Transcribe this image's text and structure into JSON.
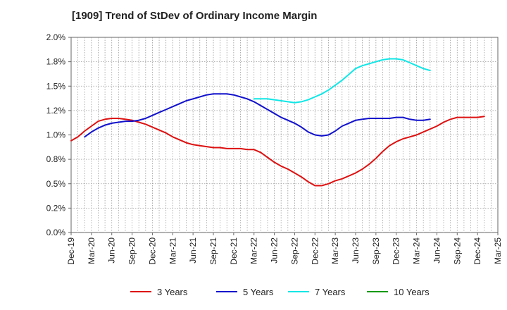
{
  "chart_data": {
    "type": "line",
    "title": "[1909]  Trend of StDev of Ordinary Income Margin",
    "xlabel": "",
    "ylabel": "",
    "ylim": [
      0,
      2.0
    ],
    "y_ticks": [
      0,
      0.25,
      0.5,
      0.75,
      1.0,
      1.25,
      1.5,
      1.75,
      2.0
    ],
    "y_tick_labels": [
      "0.0%",
      "0.2%",
      "0.5%",
      "0.8%",
      "1.0%",
      "1.2%",
      "1.5%",
      "1.8%",
      "2.0%"
    ],
    "x_tick_labels": [
      "Dec-19",
      "Mar-20",
      "Jun-20",
      "Sep-20",
      "Dec-20",
      "Mar-21",
      "Jun-21",
      "Sep-21",
      "Dec-21",
      "Mar-22",
      "Jun-22",
      "Sep-22",
      "Dec-22",
      "Mar-23",
      "Jun-23",
      "Sep-23",
      "Dec-23",
      "Mar-24",
      "Jun-24",
      "Sep-24",
      "Dec-24",
      "Mar-25"
    ],
    "grid": true,
    "legend_position": "bottom",
    "series": [
      {
        "name": "3 Years",
        "color": "#dd1111",
        "x_start": 0,
        "values": [
          0.94,
          0.98,
          1.04,
          1.09,
          1.14,
          1.16,
          1.17,
          1.17,
          1.16,
          1.15,
          1.13,
          1.11,
          1.08,
          1.05,
          1.02,
          0.98,
          0.95,
          0.92,
          0.9,
          0.89,
          0.88,
          0.87,
          0.87,
          0.86,
          0.86,
          0.86,
          0.85,
          0.85,
          0.82,
          0.77,
          0.72,
          0.68,
          0.65,
          0.61,
          0.57,
          0.52,
          0.48,
          0.48,
          0.5,
          0.53,
          0.55,
          0.58,
          0.61,
          0.65,
          0.7,
          0.76,
          0.83,
          0.89,
          0.93,
          0.96,
          0.98,
          1.0,
          1.03,
          1.06,
          1.09,
          1.13,
          1.16,
          1.18,
          1.18,
          1.18,
          1.18,
          1.19
        ]
      },
      {
        "name": "5 Years",
        "color": "#1111cc",
        "x_start": 2,
        "values": [
          0.98,
          1.03,
          1.07,
          1.1,
          1.12,
          1.13,
          1.14,
          1.14,
          1.15,
          1.17,
          1.2,
          1.23,
          1.26,
          1.29,
          1.32,
          1.35,
          1.37,
          1.39,
          1.41,
          1.42,
          1.42,
          1.42,
          1.41,
          1.39,
          1.37,
          1.34,
          1.3,
          1.26,
          1.22,
          1.18,
          1.15,
          1.12,
          1.08,
          1.03,
          1.0,
          0.99,
          1.0,
          1.04,
          1.09,
          1.12,
          1.15,
          1.16,
          1.17,
          1.17,
          1.17,
          1.17,
          1.18,
          1.18,
          1.16,
          1.15,
          1.15,
          1.16
        ]
      },
      {
        "name": "7 Years",
        "color": "#11e6e6",
        "x_start": 27,
        "values": [
          1.37,
          1.37,
          1.37,
          1.36,
          1.35,
          1.34,
          1.33,
          1.34,
          1.36,
          1.39,
          1.42,
          1.46,
          1.51,
          1.56,
          1.62,
          1.68,
          1.71,
          1.73,
          1.75,
          1.77,
          1.78,
          1.78,
          1.77,
          1.74,
          1.71,
          1.68,
          1.66
        ]
      },
      {
        "name": "10 Years",
        "color": "#119911",
        "x_start": 0,
        "values": []
      }
    ]
  }
}
